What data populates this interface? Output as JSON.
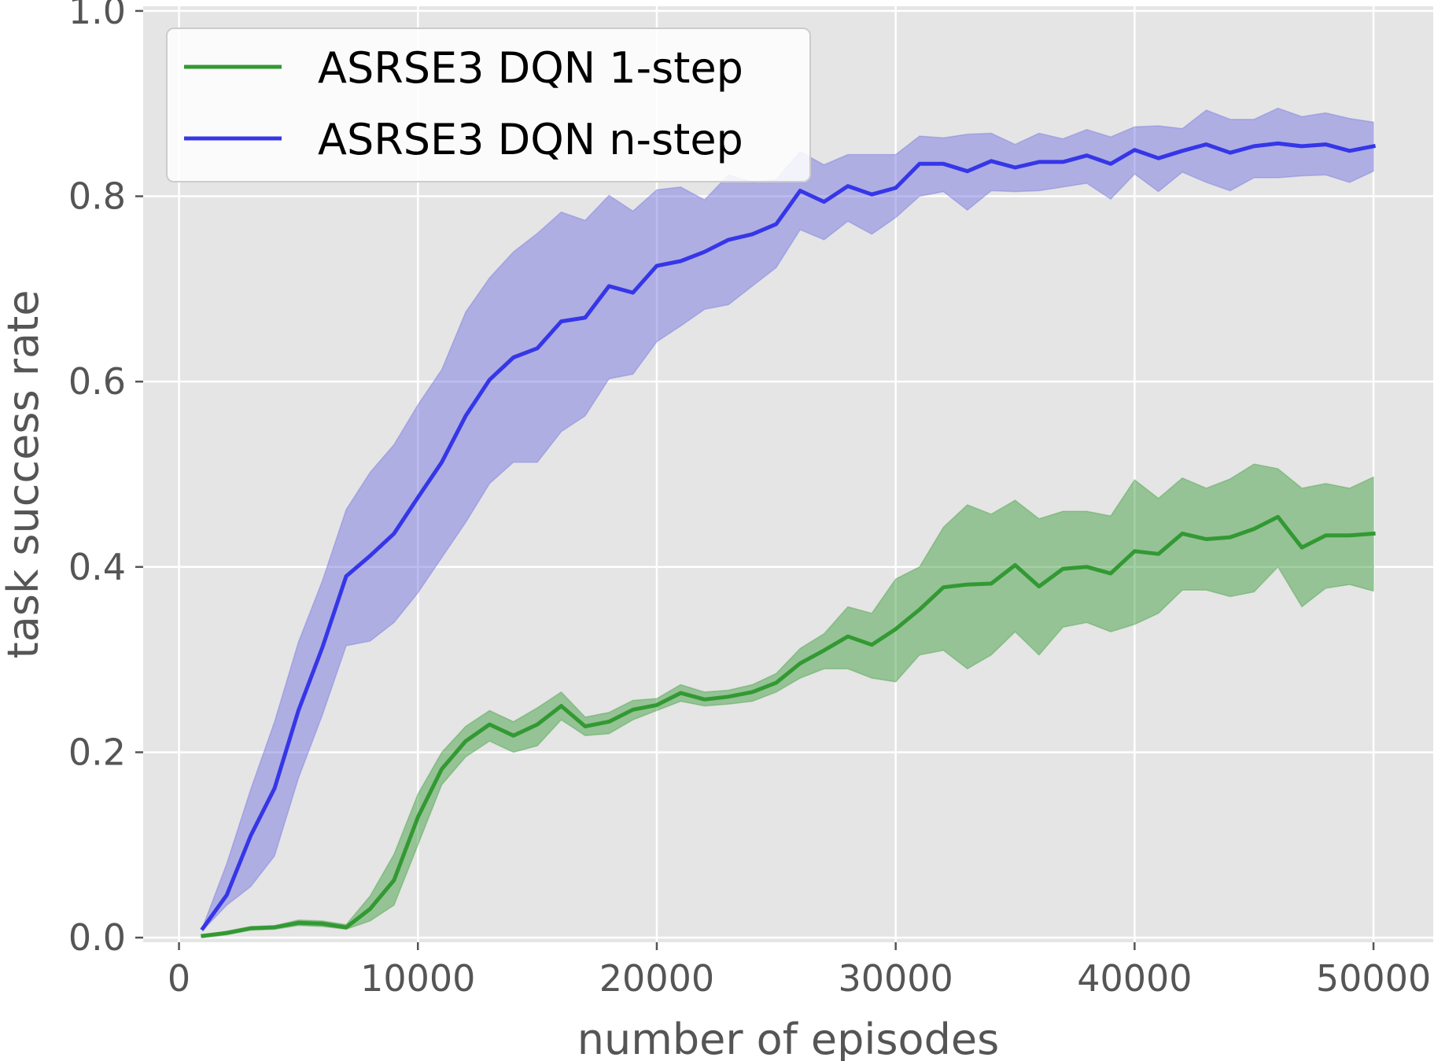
{
  "chart_data": {
    "type": "line",
    "title": "",
    "xlabel": "number of episodes",
    "ylabel": "task success rate",
    "xlim": [
      -1500,
      52500
    ],
    "ylim": [
      -0.005,
      1.005
    ],
    "xticks": [
      0,
      10000,
      20000,
      30000,
      40000,
      50000
    ],
    "xtick_labels": [
      "0",
      "10000",
      "20000",
      "30000",
      "40000",
      "50000"
    ],
    "yticks": [
      0.0,
      0.2,
      0.4,
      0.6,
      0.8,
      1.0
    ],
    "ytick_labels": [
      "0.0",
      "0.2",
      "0.4",
      "0.6",
      "0.8",
      "1.0"
    ],
    "grid": true,
    "legend_position": "top-left",
    "x": [
      1000,
      2000,
      3000,
      4000,
      5000,
      6000,
      7000,
      8000,
      9000,
      10000,
      11000,
      12000,
      13000,
      14000,
      15000,
      16000,
      17000,
      18000,
      19000,
      20000,
      21000,
      22000,
      23000,
      24000,
      25000,
      26000,
      27000,
      28000,
      29000,
      30000,
      31000,
      32000,
      33000,
      34000,
      35000,
      36000,
      37000,
      38000,
      39000,
      40000,
      41000,
      42000,
      43000,
      44000,
      45000,
      46000,
      47000,
      48000,
      49000,
      50000
    ],
    "series": [
      {
        "name": "ASRSE3 DQN 1-step",
        "color": "#339933",
        "fill_color": "#339933",
        "values": [
          0.002,
          0.005,
          0.01,
          0.011,
          0.016,
          0.015,
          0.011,
          0.031,
          0.062,
          0.13,
          0.182,
          0.212,
          0.23,
          0.218,
          0.23,
          0.25,
          0.228,
          0.233,
          0.246,
          0.251,
          0.264,
          0.257,
          0.26,
          0.265,
          0.275,
          0.296,
          0.31,
          0.325,
          0.316,
          0.333,
          0.354,
          0.378,
          0.381,
          0.382,
          0.402,
          0.379,
          0.398,
          0.4,
          0.393,
          0.417,
          0.414,
          0.436,
          0.43,
          0.432,
          0.441,
          0.454,
          0.421,
          0.434,
          0.434,
          0.436
        ],
        "lower": [
          0.0,
          0.003,
          0.008,
          0.009,
          0.013,
          0.012,
          0.009,
          0.018,
          0.035,
          0.1,
          0.165,
          0.195,
          0.212,
          0.2,
          0.207,
          0.235,
          0.218,
          0.22,
          0.235,
          0.245,
          0.255,
          0.25,
          0.252,
          0.255,
          0.265,
          0.28,
          0.29,
          0.29,
          0.28,
          0.276,
          0.305,
          0.31,
          0.29,
          0.305,
          0.33,
          0.305,
          0.335,
          0.34,
          0.33,
          0.338,
          0.35,
          0.375,
          0.375,
          0.368,
          0.373,
          0.4,
          0.357,
          0.377,
          0.381,
          0.374
        ],
        "upper": [
          0.003,
          0.007,
          0.012,
          0.013,
          0.019,
          0.018,
          0.014,
          0.045,
          0.09,
          0.155,
          0.2,
          0.228,
          0.245,
          0.233,
          0.248,
          0.265,
          0.238,
          0.243,
          0.256,
          0.258,
          0.273,
          0.265,
          0.267,
          0.273,
          0.285,
          0.312,
          0.328,
          0.357,
          0.35,
          0.387,
          0.4,
          0.443,
          0.467,
          0.457,
          0.472,
          0.452,
          0.46,
          0.46,
          0.455,
          0.494,
          0.474,
          0.496,
          0.485,
          0.495,
          0.511,
          0.506,
          0.485,
          0.49,
          0.485,
          0.497
        ]
      },
      {
        "name": "ASRSE3 DQN n-step",
        "color": "#3636e8",
        "fill_color": "#6b6be0",
        "values": [
          0.01,
          0.046,
          0.11,
          0.161,
          0.245,
          0.313,
          0.39,
          0.412,
          0.436,
          0.475,
          0.513,
          0.563,
          0.602,
          0.626,
          0.636,
          0.665,
          0.669,
          0.703,
          0.696,
          0.725,
          0.73,
          0.74,
          0.753,
          0.759,
          0.77,
          0.806,
          0.794,
          0.811,
          0.802,
          0.809,
          0.835,
          0.835,
          0.827,
          0.838,
          0.831,
          0.837,
          0.837,
          0.844,
          0.835,
          0.85,
          0.841,
          0.849,
          0.856,
          0.847,
          0.854,
          0.857,
          0.854,
          0.856,
          0.849,
          0.854
        ],
        "lower": [
          0.008,
          0.035,
          0.055,
          0.088,
          0.172,
          0.24,
          0.315,
          0.32,
          0.34,
          0.372,
          0.41,
          0.448,
          0.49,
          0.513,
          0.513,
          0.546,
          0.563,
          0.603,
          0.608,
          0.643,
          0.66,
          0.678,
          0.683,
          0.703,
          0.723,
          0.764,
          0.753,
          0.773,
          0.759,
          0.777,
          0.8,
          0.805,
          0.785,
          0.806,
          0.805,
          0.806,
          0.81,
          0.814,
          0.797,
          0.824,
          0.805,
          0.826,
          0.815,
          0.806,
          0.82,
          0.82,
          0.822,
          0.823,
          0.815,
          0.827
        ],
        "upper": [
          0.012,
          0.08,
          0.16,
          0.233,
          0.319,
          0.385,
          0.462,
          0.502,
          0.532,
          0.575,
          0.613,
          0.675,
          0.712,
          0.74,
          0.76,
          0.783,
          0.774,
          0.801,
          0.784,
          0.807,
          0.81,
          0.796,
          0.823,
          0.815,
          0.818,
          0.848,
          0.834,
          0.845,
          0.845,
          0.845,
          0.865,
          0.863,
          0.867,
          0.868,
          0.856,
          0.868,
          0.862,
          0.872,
          0.864,
          0.875,
          0.876,
          0.873,
          0.893,
          0.883,
          0.883,
          0.895,
          0.886,
          0.89,
          0.884,
          0.88
        ]
      }
    ]
  }
}
